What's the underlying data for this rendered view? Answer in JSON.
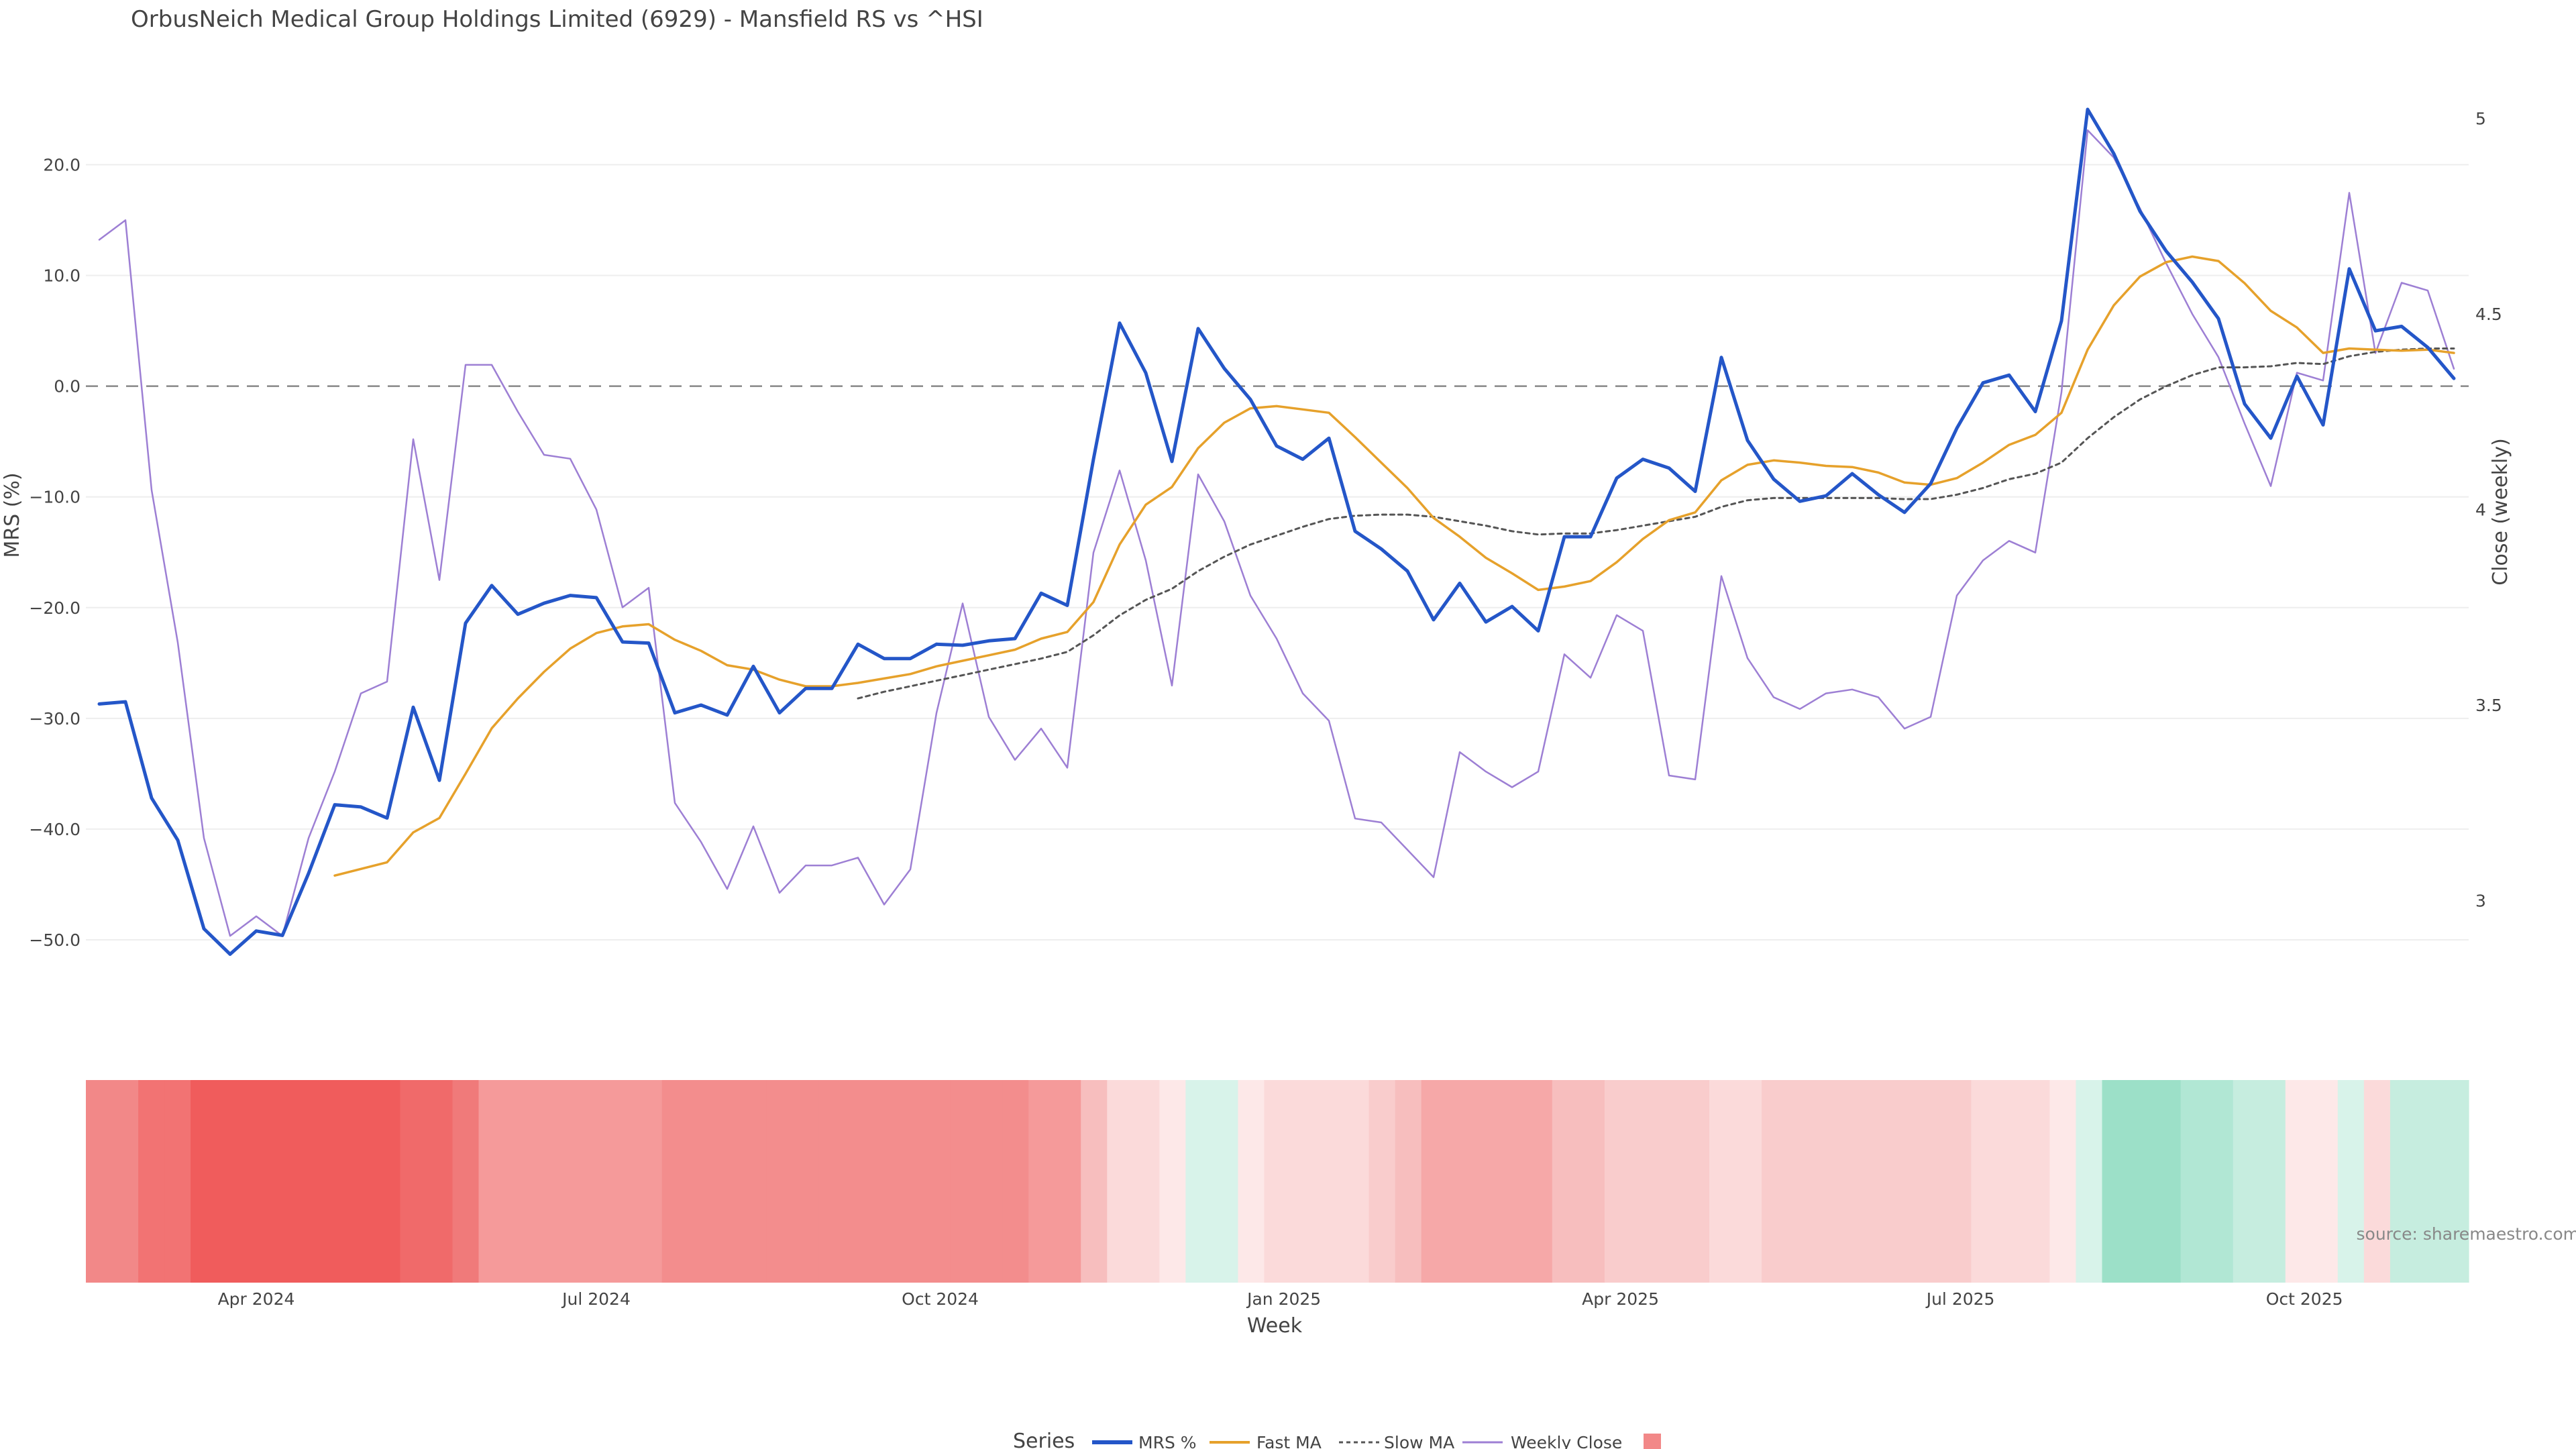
{
  "chart_data": {
    "type": "line",
    "title": "OrbusNeich Medical Group Holdings Limited (6929) - Mansfield RS vs ^HSI",
    "ylabel_left": "MRS (%)",
    "ylabel_right": "Close (weekly)",
    "xlabel": "Week",
    "source": "source: sharemaestro.com",
    "ylim_left": [
      -56,
      27
    ],
    "ylim_right": [
      2.73,
      5.08
    ],
    "yticks_left": [
      "20.0",
      "10.0",
      "0.0",
      "−10.0",
      "−20.0",
      "−30.0",
      "−40.0",
      "−50.0"
    ],
    "yticks_right": [
      "5",
      "4.5",
      "4",
      "3.5",
      "3"
    ],
    "xticks": [
      "Apr 2024",
      "Jul 2024",
      "Oct 2024",
      "Jan 2025",
      "Apr 2025",
      "Jul 2025",
      "Oct 2025"
    ],
    "reference_line": 0,
    "legend": {
      "title": "Series",
      "items": [
        "MRS %",
        "Fast MA",
        "Slow MA",
        "Weekly Close",
        ""
      ]
    },
    "x_start": "2024-02-19",
    "x_step_days": 7,
    "series": [
      {
        "name": "MRS %",
        "color": "#2456c8",
        "values": [
          -28.7,
          -28.5,
          -37.2,
          -41,
          -49,
          -51.3,
          -49.2,
          -49.6,
          -44,
          -37.8,
          -38,
          -39,
          -29,
          -35.6,
          -21.4,
          -18,
          -20.6,
          -19.6,
          -18.9,
          -19.1,
          -23.1,
          -23.2,
          -29.5,
          -28.8,
          -29.7,
          -25.3,
          -29.5,
          -27.3,
          -27.3,
          -23.3,
          -24.6,
          -24.6,
          -23.3,
          -23.4,
          -23,
          -22.8,
          -18.7,
          -19.8,
          -6.6,
          5.7,
          1.2,
          -6.8,
          5.2,
          1.6,
          -1.2,
          -5.4,
          -6.6,
          -4.7,
          -13.1,
          -14.7,
          -16.7,
          -21.1,
          -17.8,
          -21.3,
          -19.9,
          -22.1,
          -13.6,
          -13.6,
          -8.3,
          -6.6,
          -7.4,
          -9.5,
          2.6,
          -4.9,
          -8.4,
          -10.4,
          -9.9,
          -7.9,
          -9.8,
          -11.4,
          -8.8,
          -3.8,
          0.3,
          1,
          -2.3,
          5.9,
          25,
          21,
          15.8,
          12.2,
          9.4,
          6.1,
          -1.6,
          -4.7,
          0.9,
          -3.5,
          10.6,
          5,
          5.4,
          3.5,
          0.7
        ]
      },
      {
        "name": "Fast MA",
        "color": "#e6a12b",
        "values": [
          null,
          null,
          null,
          null,
          null,
          null,
          null,
          null,
          null,
          -44.2,
          -43.6,
          -43,
          -40.3,
          -39,
          -35,
          -30.9,
          -28.2,
          -25.8,
          -23.7,
          -22.3,
          -21.7,
          -21.5,
          -22.9,
          -23.9,
          -25.2,
          -25.6,
          -26.5,
          -27.1,
          -27.1,
          -26.8,
          -26.4,
          -26,
          -25.3,
          -24.8,
          -24.3,
          -23.8,
          -22.8,
          -22.2,
          -19.5,
          -14.3,
          -10.7,
          -9.1,
          -5.6,
          -3.3,
          -2,
          -1.8,
          -2.1,
          -2.4,
          -4.6,
          -6.9,
          -9.2,
          -11.9,
          -13.6,
          -15.5,
          -16.9,
          -18.4,
          -18.1,
          -17.6,
          -15.9,
          -13.8,
          -12.1,
          -11.4,
          -8.5,
          -7.1,
          -6.7,
          -6.9,
          -7.2,
          -7.3,
          -7.8,
          -8.7,
          -8.9,
          -8.3,
          -6.9,
          -5.3,
          -4.4,
          -2.4,
          3.3,
          7.3,
          9.9,
          11.2,
          11.7,
          11.3,
          9.3,
          6.8,
          5.3,
          3,
          3.4,
          3.3,
          3.2,
          3.3,
          3
        ]
      },
      {
        "name": "Slow MA",
        "color": "#555555",
        "values": [
          null,
          null,
          null,
          null,
          null,
          null,
          null,
          null,
          null,
          null,
          null,
          null,
          null,
          null,
          null,
          null,
          null,
          null,
          null,
          null,
          null,
          null,
          null,
          null,
          null,
          null,
          null,
          null,
          null,
          -28.2,
          -27.6,
          -27.1,
          -26.6,
          -26.1,
          -25.6,
          -25.1,
          -24.6,
          -24,
          -22.5,
          -20.7,
          -19.3,
          -18.3,
          -16.7,
          -15.4,
          -14.3,
          -13.5,
          -12.7,
          -12,
          -11.7,
          -11.6,
          -11.6,
          -11.8,
          -12.2,
          -12.6,
          -13.1,
          -13.4,
          -13.3,
          -13.3,
          -13,
          -12.6,
          -12.2,
          -11.8,
          -10.9,
          -10.3,
          -10.1,
          -10.1,
          -10.1,
          -10.1,
          -10.1,
          -10.2,
          -10.2,
          -9.8,
          -9.2,
          -8.4,
          -7.9,
          -6.9,
          -4.7,
          -2.8,
          -1.2,
          0,
          1,
          1.7,
          1.7,
          1.8,
          2.1,
          2,
          2.7,
          3.1,
          3.3,
          3.4,
          3.4
        ]
      },
      {
        "name": "Weekly Close",
        "color": "#9d7fd4",
        "axis": "right",
        "values": [
          4.69,
          4.74,
          4.05,
          3.66,
          3.16,
          2.91,
          2.96,
          2.91,
          3.16,
          3.33,
          3.53,
          3.56,
          4.18,
          3.82,
          4.37,
          4.37,
          4.25,
          4.14,
          4.13,
          4,
          3.75,
          3.8,
          3.25,
          3.15,
          3.03,
          3.19,
          3.02,
          3.09,
          3.09,
          3.11,
          2.99,
          3.08,
          3.48,
          3.76,
          3.47,
          3.36,
          3.44,
          3.34,
          3.89,
          4.1,
          3.87,
          3.55,
          4.09,
          3.97,
          3.78,
          3.67,
          3.53,
          3.46,
          3.21,
          3.2,
          3.13,
          3.06,
          3.38,
          3.33,
          3.29,
          3.33,
          3.63,
          3.57,
          3.73,
          3.69,
          3.32,
          3.31,
          3.83,
          3.62,
          3.52,
          3.49,
          3.53,
          3.54,
          3.52,
          3.44,
          3.47,
          3.78,
          3.87,
          3.92,
          3.89,
          4.3,
          4.97,
          4.9,
          4.77,
          4.63,
          4.5,
          4.39,
          4.22,
          4.06,
          4.35,
          4.33,
          4.81,
          4.4,
          4.58,
          4.56,
          4.36
        ]
      }
    ],
    "heat_strip_colors": [
      "#f28888",
      "#f28888",
      "#f27373",
      "#f27373",
      "#f05c5c",
      "#f05c5c",
      "#f05c5c",
      "#f05c5c",
      "#f05c5c",
      "#f05c5c",
      "#f05c5c",
      "#f05c5c",
      "#f06a6a",
      "#f06a6a",
      "#f07a7a",
      "#f59a9a",
      "#f59a9a",
      "#f59a9a",
      "#f59a9a",
      "#f59a9a",
      "#f59a9a",
      "#f59a9a",
      "#f38d8d",
      "#f38d8d",
      "#f38d8d",
      "#f38d8d",
      "#f38d8d",
      "#f38d8d",
      "#f38d8d",
      "#f38d8d",
      "#f38d8d",
      "#f38d8d",
      "#f38d8d",
      "#f38d8d",
      "#f38d8d",
      "#f38d8d",
      "#f59a9a",
      "#f59a9a",
      "#f7bebe",
      "#fbdada",
      "#fbdada",
      "#fde8e8",
      "#d8f3ea",
      "#d8f3ea",
      "#fde8e8",
      "#fbdada",
      "#fbdada",
      "#fbdada",
      "#fbdada",
      "#f9cccc",
      "#f7bebe",
      "#f6a8a8",
      "#f6a8a8",
      "#f6a8a8",
      "#f6a8a8",
      "#f6a8a8",
      "#f7bebe",
      "#f7bebe",
      "#f9cccc",
      "#f9cccc",
      "#f9cccc",
      "#f9cccc",
      "#fbdada",
      "#fbdada",
      "#f9cccc",
      "#f9cccc",
      "#f9cccc",
      "#f9cccc",
      "#f9cccc",
      "#f9cccc",
      "#f9cccc",
      "#f9cccc",
      "#fbdada",
      "#fbdada",
      "#fbdada",
      "#fde8e8",
      "#d8f3ea",
      "#9ce0c8",
      "#9ce0c8",
      "#9ce0c8",
      "#b1e7d4",
      "#b1e7d4",
      "#c6eddf",
      "#c6eddf",
      "#fde8e8",
      "#fde8e8",
      "#d8f3ea",
      "#fbdada",
      "#c6eddf",
      "#c6eddf",
      "#c6eddf"
    ]
  }
}
